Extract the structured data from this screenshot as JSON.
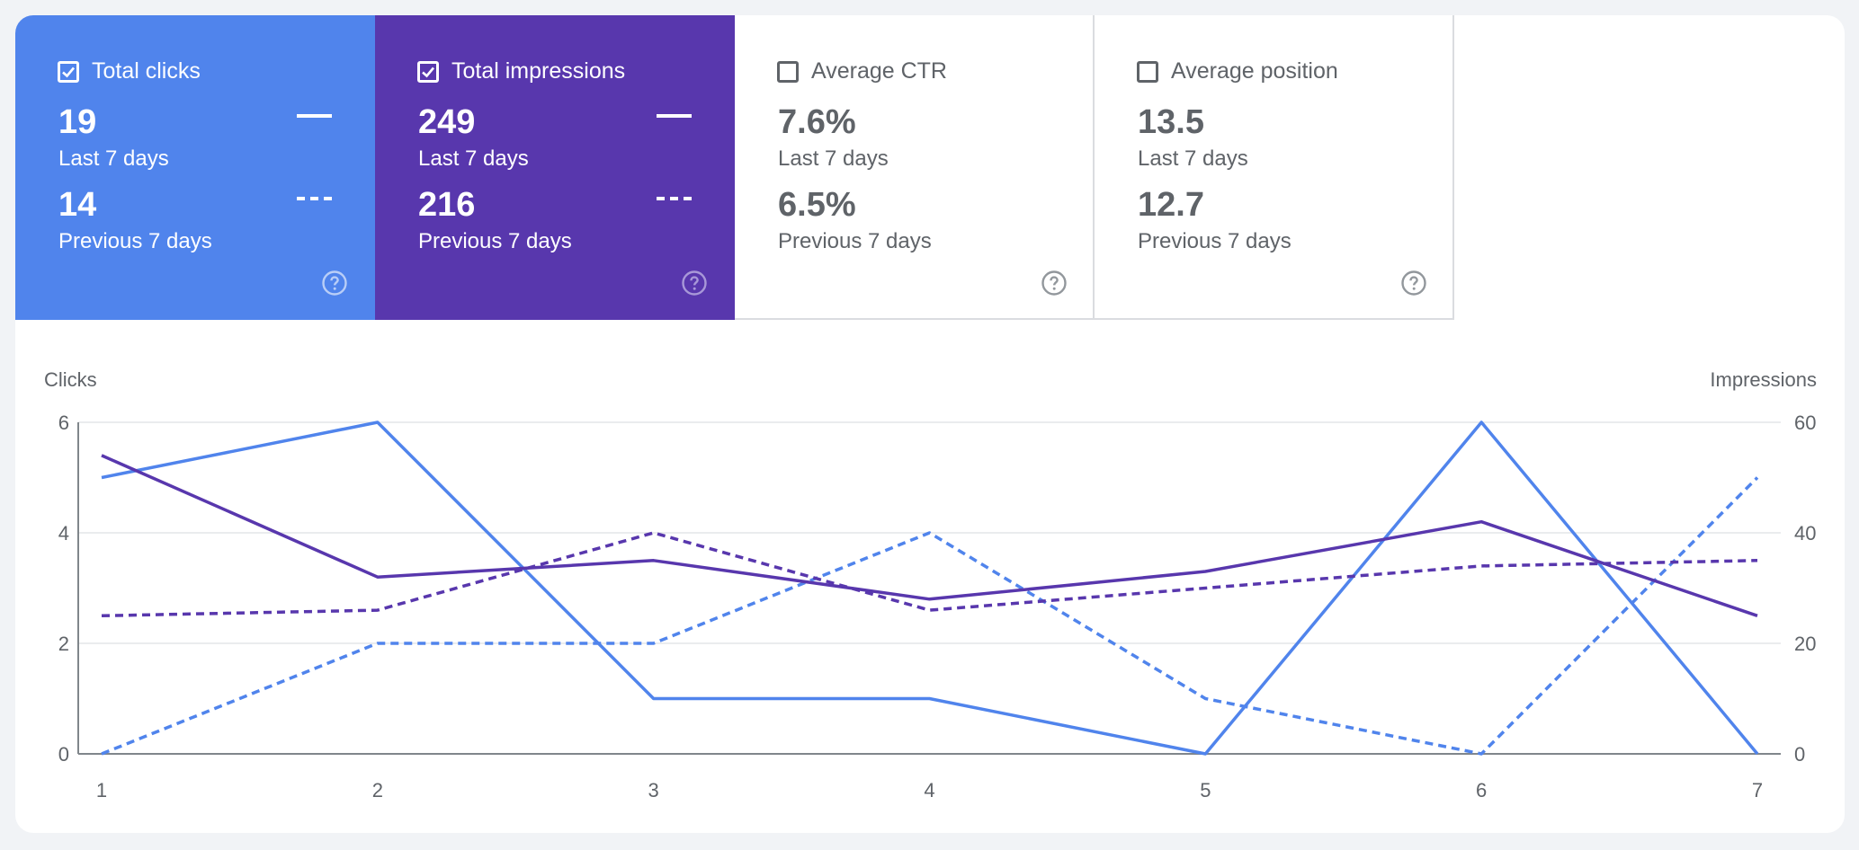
{
  "metrics": [
    {
      "label": "Total clicks",
      "checked": true,
      "current_value": "19",
      "current_period": "Last 7 days",
      "previous_value": "14",
      "previous_period": "Previous 7 days",
      "color": "#5084ec"
    },
    {
      "label": "Total impressions",
      "checked": true,
      "current_value": "249",
      "current_period": "Last 7 days",
      "previous_value": "216",
      "previous_period": "Previous 7 days",
      "color": "#5837ad"
    },
    {
      "label": "Average CTR",
      "checked": false,
      "current_value": "7.6%",
      "current_period": "Last 7 days",
      "previous_value": "6.5%",
      "previous_period": "Previous 7 days"
    },
    {
      "label": "Average position",
      "checked": false,
      "current_value": "13.5",
      "current_period": "Last 7 days",
      "previous_value": "12.7",
      "previous_period": "Previous 7 days"
    }
  ],
  "chart_data": {
    "type": "line",
    "x": [
      1,
      2,
      3,
      4,
      5,
      6,
      7
    ],
    "xlabel": "",
    "ylabel_left": "Clicks",
    "ylabel_right": "Impressions",
    "ylim_left": [
      0,
      6
    ],
    "ylim_right": [
      0,
      60
    ],
    "yticks_left": [
      0,
      2,
      4,
      6
    ],
    "yticks_right": [
      0,
      20,
      40,
      60
    ],
    "grid": true,
    "series": [
      {
        "metric": "clicks",
        "period": "current",
        "axis": "left",
        "style": "solid",
        "color": "#5084ec",
        "values": [
          5,
          6,
          1,
          1,
          0,
          6,
          0
        ]
      },
      {
        "metric": "clicks",
        "period": "previous",
        "axis": "left",
        "style": "dashed",
        "color": "#5084ec",
        "values": [
          0,
          2,
          2,
          4,
          1,
          0,
          5
        ]
      },
      {
        "metric": "impressions",
        "period": "current",
        "axis": "right",
        "style": "solid",
        "color": "#5837ad",
        "values": [
          54,
          32,
          35,
          28,
          33,
          42,
          25
        ]
      },
      {
        "metric": "impressions",
        "period": "previous",
        "axis": "right",
        "style": "dashed",
        "color": "#5837ad",
        "values": [
          25,
          26,
          40,
          26,
          30,
          34,
          35
        ]
      }
    ]
  }
}
